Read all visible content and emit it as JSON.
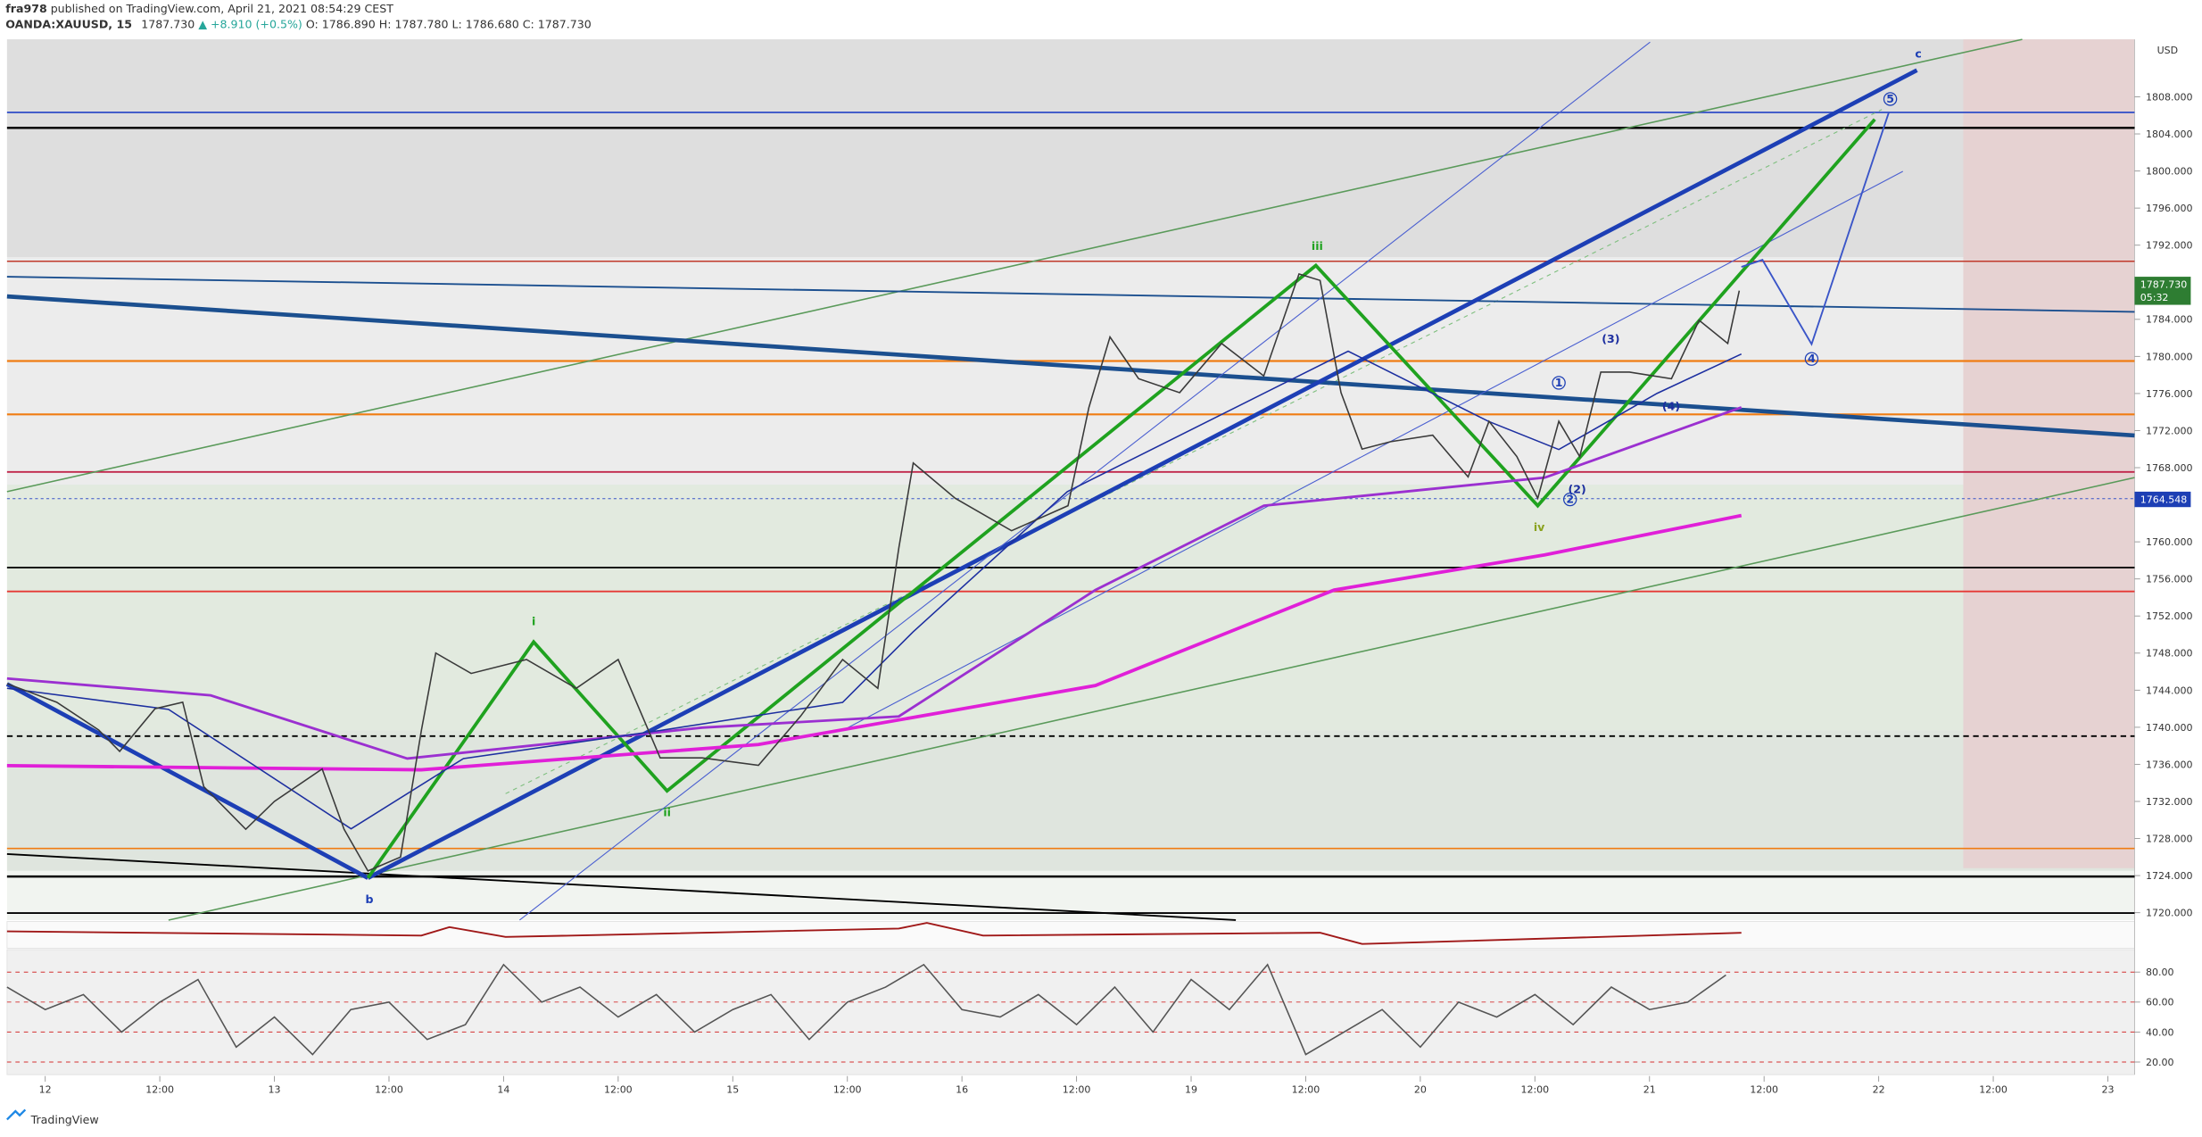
{
  "header": {
    "publisher": "fra978",
    "published": "published on TradingView.com, April 21, 2021 08:54:29 CEST",
    "symbol": "OANDA:XAUUSD, 15",
    "price": "1787.730",
    "change": "▲ +8.910 (+0.5%)",
    "open": "O: 1786.890",
    "high": "H: 1787.780",
    "low": "L: 1786.680",
    "close": "C: 1787.730"
  },
  "footer": {
    "brand": "TradingView"
  },
  "chart_data": [
    {
      "type": "line",
      "currency": "USD",
      "color": "#3a3a3a",
      "x": [
        -4,
        1.2,
        5.6,
        7.8,
        11.5,
        14.4,
        16.6,
        21,
        24,
        29,
        31.3,
        33.8,
        37.2,
        39.4,
        40.9,
        44.6,
        50.4,
        55.6,
        60,
        64.4,
        68.8,
        74.7,
        79.1,
        83.5,
        87.2,
        89.4,
        90.9,
        95.3,
        101.2,
        107.1,
        109.3,
        111.5,
        114.5,
        118.8,
        123.2,
        127.6,
        131.3,
        133.5,
        135.7,
        137.9,
        140.9,
        145.3,
        149,
        151.2,
        154.1,
        156.3,
        158.5,
        160.7,
        162.9,
        165.9,
        170.3,
        173.2,
        176.2,
        177.4
      ],
      "values": [
        1744.7,
        1742.7,
        1739.7,
        1737.4,
        1742,
        1742.7,
        1733.6,
        1729,
        1732,
        1735.5,
        1729,
        1724.5,
        1726,
        1739.7,
        1748,
        1745.8,
        1747.3,
        1744.2,
        1747.3,
        1736.7,
        1736.7,
        1735.9,
        1741.2,
        1747.3,
        1744.2,
        1759.4,
        1768.5,
        1764.7,
        1761.2,
        1763.9,
        1774.5,
        1782.1,
        1777.6,
        1776.1,
        1781.4,
        1777.9,
        1788.9,
        1788.2,
        1776.1,
        1770,
        1770.8,
        1771.5,
        1767,
        1773,
        1769.2,
        1764.7,
        1773,
        1769.2,
        1778.3,
        1778.3,
        1777.6,
        1783.9,
        1781.4,
        1787.1
      ],
      "xlim": [
        -4,
        218.8
      ],
      "ylim": [
        1719.2,
        1814.2
      ],
      "xticks": [
        {
          "value": 0,
          "label": "12"
        },
        {
          "value": 12,
          "label": "12:00"
        },
        {
          "value": 24,
          "label": "13"
        },
        {
          "value": 36,
          "label": "12:00"
        },
        {
          "value": 48,
          "label": "14"
        },
        {
          "value": 60,
          "label": "12:00"
        },
        {
          "value": 72,
          "label": "15"
        },
        {
          "value": 84,
          "label": "12:00"
        },
        {
          "value": 96,
          "label": "16"
        },
        {
          "value": 108,
          "label": "12:00"
        },
        {
          "value": 120,
          "label": "19"
        },
        {
          "value": 132,
          "label": "12:00"
        },
        {
          "value": 144,
          "label": "20"
        },
        {
          "value": 156,
          "label": "12:00"
        },
        {
          "value": 168,
          "label": "21"
        },
        {
          "value": 180,
          "label": "12:00"
        },
        {
          "value": 192,
          "label": "22"
        },
        {
          "value": 204,
          "label": "12:00"
        },
        {
          "value": 216,
          "label": "23"
        }
      ],
      "yticks": [
        {
          "value": 1720,
          "label": "1720.000"
        },
        {
          "value": 1724,
          "label": "1724.000"
        },
        {
          "value": 1728,
          "label": "1728.000"
        },
        {
          "value": 1732,
          "label": "1732.000"
        },
        {
          "value": 1736,
          "label": "1736.000"
        },
        {
          "value": 1740,
          "label": "1740.000"
        },
        {
          "value": 1744,
          "label": "1744.000"
        },
        {
          "value": 1748,
          "label": "1748.000"
        },
        {
          "value": 1752,
          "label": "1752.000"
        },
        {
          "value": 1756,
          "label": "1756.000"
        },
        {
          "value": 1760,
          "label": "1760.000"
        },
        {
          "value": 1768,
          "label": "1768.000"
        },
        {
          "value": 1772,
          "label": "1772.000"
        },
        {
          "value": 1776,
          "label": "1776.000"
        },
        {
          "value": 1780,
          "label": "1780.000"
        },
        {
          "value": 1784,
          "label": "1784.000"
        },
        {
          "value": 1792,
          "label": "1792.000"
        },
        {
          "value": 1796,
          "label": "1796.000"
        },
        {
          "value": 1800,
          "label": "1800.000"
        },
        {
          "value": 1804,
          "label": "1804.000"
        },
        {
          "value": 1808,
          "label": "1808.000"
        }
      ],
      "last_price_label": "1787.730",
      "countdown": "05:32",
      "level_label": "1764.548",
      "annotations": [
        "i",
        "ii",
        "iii",
        "iv",
        "b",
        "c",
        "(3)",
        "(4)",
        "(2)",
        "1",
        "2",
        "4",
        "5"
      ]
    },
    {
      "type": "line",
      "color": "#555555",
      "x": [
        -4,
        0,
        4,
        8,
        12,
        16,
        20,
        24,
        28,
        32,
        36,
        40,
        44,
        48,
        52,
        56,
        60,
        64,
        68,
        72,
        76,
        80,
        84,
        88,
        92,
        96,
        100,
        104,
        108,
        112,
        116,
        120,
        124,
        128,
        132,
        136,
        140,
        144,
        148,
        152,
        156,
        160,
        164,
        168,
        172,
        176
      ],
      "values": [
        70,
        55,
        65,
        40,
        60,
        75,
        30,
        50,
        25,
        55,
        60,
        35,
        45,
        85,
        60,
        70,
        50,
        65,
        40,
        55,
        65,
        35,
        60,
        70,
        85,
        55,
        50,
        65,
        45,
        70,
        40,
        75,
        55,
        85,
        25,
        40,
        55,
        30,
        60,
        50,
        65,
        45,
        70,
        55,
        60,
        78
      ],
      "xlim": [
        -4,
        218.8
      ],
      "ylim": [
        11.6,
        95
      ],
      "yticks": [
        {
          "value": 20,
          "label": "20.00"
        },
        {
          "value": 40,
          "label": "40.00"
        },
        {
          "value": 60,
          "label": "60.00"
        },
        {
          "value": 80,
          "label": "80.00"
        }
      ]
    }
  ]
}
